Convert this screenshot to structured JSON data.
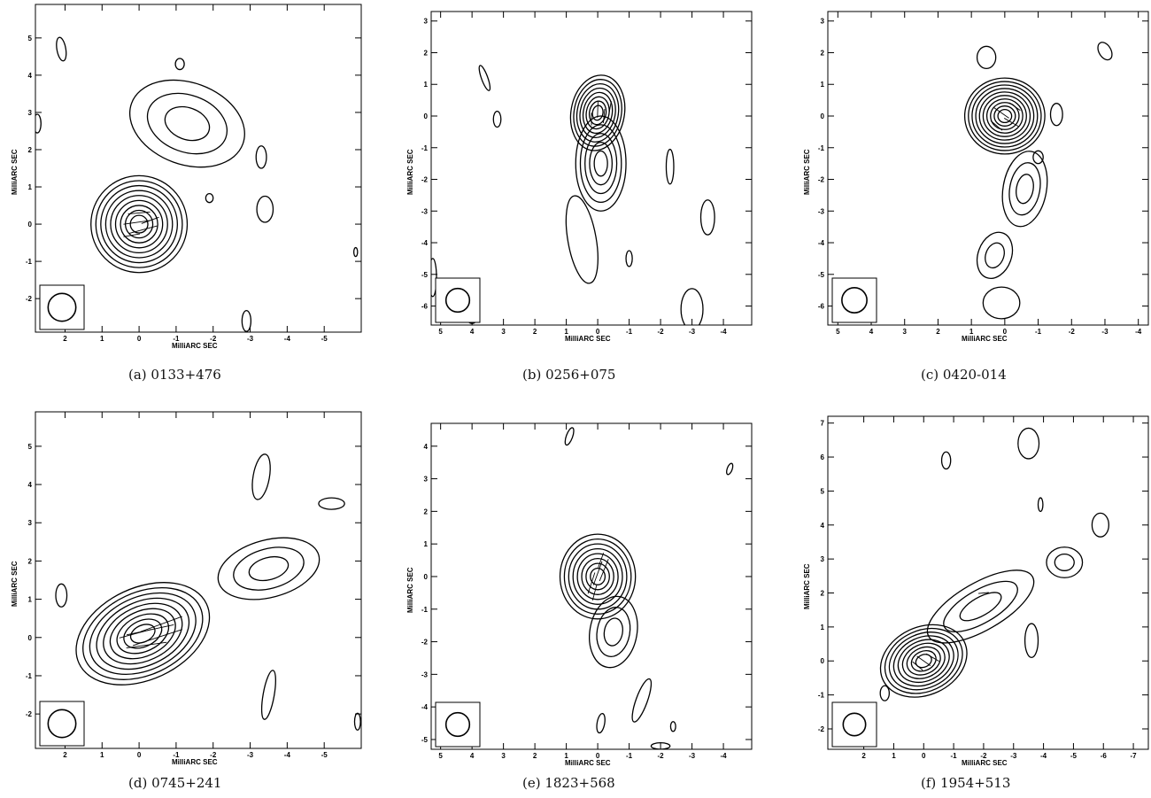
{
  "panels": [
    {
      "caption": "(a) 0133+476",
      "xlabel": "MilliARC SEC",
      "ylabel": "MilliARC SEC"
    },
    {
      "caption": "(b) 0256+075",
      "xlabel": "MilliARC SEC",
      "ylabel": "MilliARC SEC"
    },
    {
      "caption": "(c) 0420-014",
      "xlabel": "MilliARC SEC",
      "ylabel": "MilliARC SEC"
    },
    {
      "caption": "(d) 0745+241",
      "xlabel": "MilliARC SEC",
      "ylabel": "MilliARC SEC"
    },
    {
      "caption": "(e) 1823+568",
      "xlabel": "MilliARC SEC",
      "ylabel": "MilliARC SEC"
    },
    {
      "caption": "(f) 1954+513",
      "xlabel": "MilliARC SEC",
      "ylabel": "MilliARC SEC"
    }
  ],
  "chart_data": [
    {
      "type": "contour",
      "title": "(a) 0133+476",
      "xlabel": "MilliARC SEC",
      "ylabel": "MilliARC SEC",
      "xlim": [
        2.8,
        -6.0
      ],
      "ylim": [
        -2.9,
        5.9
      ],
      "xticks": [
        2,
        1,
        0,
        -1,
        -2,
        -3,
        -4,
        -5
      ],
      "yticks": [
        -2,
        -1,
        0,
        1,
        2,
        3,
        4,
        5
      ],
      "components": [
        {
          "x": 0,
          "y": 0,
          "rx": 1.3,
          "ry": 1.3,
          "angle": 0,
          "levels": 9
        },
        {
          "x": -1.3,
          "y": 2.7,
          "rx": 1.6,
          "ry": 1.1,
          "angle": 20,
          "levels": 3
        }
      ],
      "islands": [
        {
          "x": 2.1,
          "y": 4.7,
          "rx": 0.12,
          "ry": 0.32,
          "angle": -10
        },
        {
          "x": -1.1,
          "y": 4.3,
          "rx": 0.12,
          "ry": 0.15,
          "angle": 0
        },
        {
          "x": 2.75,
          "y": 2.7,
          "rx": 0.1,
          "ry": 0.25,
          "angle": 0
        },
        {
          "x": -3.3,
          "y": 1.8,
          "rx": 0.14,
          "ry": 0.3,
          "angle": 0
        },
        {
          "x": -3.4,
          "y": 0.4,
          "rx": 0.22,
          "ry": 0.35,
          "angle": 0
        },
        {
          "x": -1.9,
          "y": 0.7,
          "rx": 0.1,
          "ry": 0.12,
          "angle": 0
        },
        {
          "x": -2.9,
          "y": -2.6,
          "rx": 0.12,
          "ry": 0.28,
          "angle": 0
        },
        {
          "x": -5.85,
          "y": -0.75,
          "rx": 0.05,
          "ry": 0.12,
          "angle": 0
        }
      ],
      "vectors": [
        {
          "x": 0.05,
          "y": 0.05,
          "angle": 8,
          "length": 0.75
        },
        {
          "x": -0.1,
          "y": -0.15,
          "angle": 15,
          "length": 0.8
        },
        {
          "x": 0.0,
          "y": 0.3,
          "angle": 5,
          "length": 0.6
        },
        {
          "x": -0.3,
          "y": 0.1,
          "angle": 20,
          "length": 0.5
        },
        {
          "x": 0.2,
          "y": -0.3,
          "angle": 10,
          "length": 0.45
        }
      ],
      "beam": {
        "diameter": 0.75
      }
    },
    {
      "type": "contour",
      "title": "(b) 0256+075",
      "xlabel": "MilliARC SEC",
      "ylabel": "MilliARC SEC",
      "xlim": [
        5.3,
        -4.9
      ],
      "ylim": [
        -6.6,
        3.3
      ],
      "xticks": [
        5,
        4,
        3,
        2,
        1,
        0,
        -1,
        -2,
        -3,
        -4
      ],
      "yticks": [
        -6,
        -5,
        -4,
        -3,
        -2,
        -1,
        0,
        1,
        2,
        3
      ],
      "components": [
        {
          "x": 0.0,
          "y": 0.1,
          "rx": 0.85,
          "ry": 1.2,
          "angle": 10,
          "levels": 8
        },
        {
          "x": -0.1,
          "y": -1.5,
          "rx": 0.8,
          "ry": 1.5,
          "angle": 0,
          "levels": 5
        },
        {
          "x": 0.5,
          "y": -3.9,
          "rx": 0.45,
          "ry": 1.4,
          "angle": -10,
          "levels": 1
        }
      ],
      "islands": [
        {
          "x": 3.6,
          "y": 1.2,
          "rx": 0.1,
          "ry": 0.42,
          "angle": -20
        },
        {
          "x": 3.2,
          "y": -0.1,
          "rx": 0.12,
          "ry": 0.25,
          "angle": 0
        },
        {
          "x": -2.3,
          "y": -1.6,
          "rx": 0.12,
          "ry": 0.55,
          "angle": 0
        },
        {
          "x": -3.5,
          "y": -3.2,
          "rx": 0.22,
          "ry": 0.55,
          "angle": 0
        },
        {
          "x": -1.0,
          "y": -4.5,
          "rx": 0.1,
          "ry": 0.25,
          "angle": 0
        },
        {
          "x": -3.0,
          "y": -6.1,
          "rx": 0.35,
          "ry": 0.65,
          "angle": 0
        },
        {
          "x": 5.25,
          "y": -5.1,
          "rx": 0.12,
          "ry": 0.6,
          "angle": 0
        },
        {
          "x": 4.0,
          "y": -6.2,
          "rx": 0.22,
          "ry": 0.35,
          "angle": 0
        }
      ],
      "vectors": [
        {
          "x": 0.0,
          "y": 0.2,
          "angle": 88,
          "length": 0.5
        },
        {
          "x": -0.2,
          "y": 0.0,
          "angle": 85,
          "length": 0.45
        },
        {
          "x": 0.2,
          "y": -0.1,
          "angle": 90,
          "length": 0.4
        },
        {
          "x": -0.4,
          "y": 0.3,
          "angle": 80,
          "length": 0.35
        }
      ],
      "beam": {
        "diameter": 0.75
      }
    },
    {
      "type": "contour",
      "title": "(c) 0420-014",
      "xlabel": "MilliARC SEC",
      "ylabel": "MilliARC SEC",
      "xlim": [
        5.3,
        -4.3
      ],
      "ylim": [
        -6.6,
        3.3
      ],
      "xticks": [
        5,
        4,
        3,
        2,
        1,
        0,
        -1,
        -2,
        -3,
        -4
      ],
      "yticks": [
        -6,
        -5,
        -4,
        -3,
        -2,
        -1,
        0,
        1,
        2,
        3
      ],
      "components": [
        {
          "x": 0.0,
          "y": 0.0,
          "rx": 1.2,
          "ry": 1.2,
          "angle": 0,
          "levels": 10
        },
        {
          "x": -0.6,
          "y": -2.3,
          "rx": 0.65,
          "ry": 1.2,
          "angle": 10,
          "levels": 3
        },
        {
          "x": 0.3,
          "y": -4.4,
          "rx": 0.5,
          "ry": 0.75,
          "angle": 20,
          "levels": 2
        }
      ],
      "islands": [
        {
          "x": 0.55,
          "y": 1.85,
          "rx": 0.28,
          "ry": 0.35,
          "angle": 0
        },
        {
          "x": -1.0,
          "y": -1.3,
          "rx": 0.15,
          "ry": 0.2,
          "angle": 0
        },
        {
          "x": -1.55,
          "y": 0.05,
          "rx": 0.18,
          "ry": 0.35,
          "angle": 0
        },
        {
          "x": -3.0,
          "y": 2.05,
          "rx": 0.18,
          "ry": 0.3,
          "angle": -30
        },
        {
          "x": 0.1,
          "y": -5.9,
          "rx": 0.55,
          "ry": 0.5,
          "angle": 0
        }
      ],
      "vectors": [
        {
          "x": 0.1,
          "y": 0.1,
          "angle": -35,
          "length": 0.55
        },
        {
          "x": -0.2,
          "y": -0.2,
          "angle": -30,
          "length": 0.5
        },
        {
          "x": 0.25,
          "y": -0.3,
          "angle": -40,
          "length": 0.45
        },
        {
          "x": -0.3,
          "y": 0.3,
          "angle": -35,
          "length": 0.4
        }
      ],
      "beam": {
        "diameter": 0.75
      }
    },
    {
      "type": "contour",
      "title": "(d) 0745+241",
      "xlabel": "MilliARC SEC",
      "ylabel": "MilliARC SEC",
      "xlim": [
        2.8,
        -6.0
      ],
      "ylim": [
        -2.9,
        5.9
      ],
      "xticks": [
        2,
        1,
        0,
        -1,
        -2,
        -3,
        -4,
        -5
      ],
      "yticks": [
        -2,
        -1,
        0,
        1,
        2,
        3,
        4,
        5
      ],
      "components": [
        {
          "x": -0.1,
          "y": 0.1,
          "rx": 1.9,
          "ry": 1.2,
          "angle": -25,
          "levels": 9
        },
        {
          "x": -3.5,
          "y": 1.8,
          "rx": 1.4,
          "ry": 0.75,
          "angle": -15,
          "levels": 3
        }
      ],
      "islands": [
        {
          "x": 2.1,
          "y": 1.1,
          "rx": 0.15,
          "ry": 0.3,
          "angle": 0
        },
        {
          "x": -3.3,
          "y": 4.2,
          "rx": 0.22,
          "ry": 0.6,
          "angle": 10
        },
        {
          "x": -5.2,
          "y": 3.5,
          "rx": 0.35,
          "ry": 0.15,
          "angle": 0
        },
        {
          "x": -3.5,
          "y": -1.5,
          "rx": 0.15,
          "ry": 0.65,
          "angle": 10
        },
        {
          "x": -5.9,
          "y": -2.2,
          "rx": 0.08,
          "ry": 0.22,
          "angle": 0
        }
      ],
      "vectors": [
        {
          "x": -0.3,
          "y": 0.2,
          "angle": 12,
          "length": 1.3
        },
        {
          "x": -0.5,
          "y": 0.0,
          "angle": 18,
          "length": 1.4
        },
        {
          "x": -0.2,
          "y": -0.2,
          "angle": 8,
          "length": 1.1
        },
        {
          "x": -0.6,
          "y": 0.35,
          "angle": 20,
          "length": 1.2
        },
        {
          "x": 0.1,
          "y": 0.1,
          "angle": 15,
          "length": 0.9
        }
      ],
      "beam": {
        "diameter": 0.75
      }
    },
    {
      "type": "contour",
      "title": "(e) 1823+568",
      "xlabel": "MilliARC SEC",
      "ylabel": "MilliARC SEC",
      "xlim": [
        5.3,
        -4.9
      ],
      "ylim": [
        -5.3,
        4.7
      ],
      "xticks": [
        5,
        4,
        3,
        2,
        1,
        0,
        -1,
        -2,
        -3,
        -4
      ],
      "yticks": [
        -5,
        -4,
        -3,
        -2,
        -1,
        0,
        1,
        2,
        3,
        4
      ],
      "components": [
        {
          "x": 0.0,
          "y": 0.0,
          "rx": 1.2,
          "ry": 1.3,
          "angle": 0,
          "levels": 8
        },
        {
          "x": -0.5,
          "y": -1.7,
          "rx": 0.75,
          "ry": 1.1,
          "angle": 10,
          "levels": 3
        }
      ],
      "islands": [
        {
          "x": 0.9,
          "y": 4.3,
          "rx": 0.1,
          "ry": 0.28,
          "angle": 20
        },
        {
          "x": -4.2,
          "y": 3.3,
          "rx": 0.08,
          "ry": 0.18,
          "angle": 20
        },
        {
          "x": -1.4,
          "y": -3.8,
          "rx": 0.18,
          "ry": 0.7,
          "angle": 20
        },
        {
          "x": -0.1,
          "y": -4.5,
          "rx": 0.12,
          "ry": 0.3,
          "angle": 10
        },
        {
          "x": -2.4,
          "y": -4.6,
          "rx": 0.08,
          "ry": 0.15,
          "angle": 0
        },
        {
          "x": -2.0,
          "y": -5.2,
          "rx": 0.3,
          "ry": 0.1,
          "angle": 0
        }
      ],
      "vectors": [
        {
          "x": 0.0,
          "y": 0.1,
          "angle": 70,
          "length": 0.8
        },
        {
          "x": 0.2,
          "y": -0.2,
          "angle": 72,
          "length": 0.7
        },
        {
          "x": -0.2,
          "y": 0.2,
          "angle": 68,
          "length": 0.75
        },
        {
          "x": 0.1,
          "y": -0.5,
          "angle": 75,
          "length": 0.5
        },
        {
          "x": -0.1,
          "y": 0.5,
          "angle": 70,
          "length": 0.5
        }
      ],
      "beam": {
        "diameter": 0.75
      }
    },
    {
      "type": "contour",
      "title": "(f) 1954+513",
      "xlabel": "MilliARC SEC",
      "ylabel": "MilliARC SEC",
      "xlim": [
        3.2,
        -7.5
      ],
      "ylim": [
        -2.6,
        7.2
      ],
      "xticks": [
        2,
        1,
        0,
        -1,
        -2,
        -3,
        -4,
        -5,
        -6,
        -7
      ],
      "yticks": [
        -2,
        -1,
        0,
        1,
        2,
        3,
        4,
        5,
        6,
        7
      ],
      "components": [
        {
          "x": 0.0,
          "y": 0.0,
          "rx": 1.5,
          "ry": 1.0,
          "angle": -25,
          "levels": 9
        },
        {
          "x": -1.9,
          "y": 1.6,
          "rx": 2.0,
          "ry": 0.7,
          "angle": -30,
          "levels": 3
        },
        {
          "x": -4.7,
          "y": 2.9,
          "rx": 0.6,
          "ry": 0.45,
          "angle": 0,
          "levels": 2
        }
      ],
      "islands": [
        {
          "x": -0.75,
          "y": 5.9,
          "rx": 0.15,
          "ry": 0.25,
          "angle": 0
        },
        {
          "x": -3.5,
          "y": 6.4,
          "rx": 0.35,
          "ry": 0.45,
          "angle": 0
        },
        {
          "x": -3.9,
          "y": 4.6,
          "rx": 0.08,
          "ry": 0.2,
          "angle": 0
        },
        {
          "x": -5.9,
          "y": 4.0,
          "rx": 0.28,
          "ry": 0.35,
          "angle": 0
        },
        {
          "x": -3.6,
          "y": 0.6,
          "rx": 0.22,
          "ry": 0.5,
          "angle": 0
        },
        {
          "x": 1.3,
          "y": -0.95,
          "rx": 0.15,
          "ry": 0.22,
          "angle": 0
        }
      ],
      "vectors": [
        {
          "x": 0.0,
          "y": 0.0,
          "angle": -35,
          "length": 0.55
        },
        {
          "x": -0.3,
          "y": 0.1,
          "angle": -30,
          "length": 0.5
        },
        {
          "x": 0.2,
          "y": -0.15,
          "angle": -40,
          "length": 0.45
        },
        {
          "x": -2.0,
          "y": 2.0,
          "angle": 5,
          "length": 0.35
        }
      ],
      "beam": {
        "diameter": 0.75
      }
    }
  ]
}
